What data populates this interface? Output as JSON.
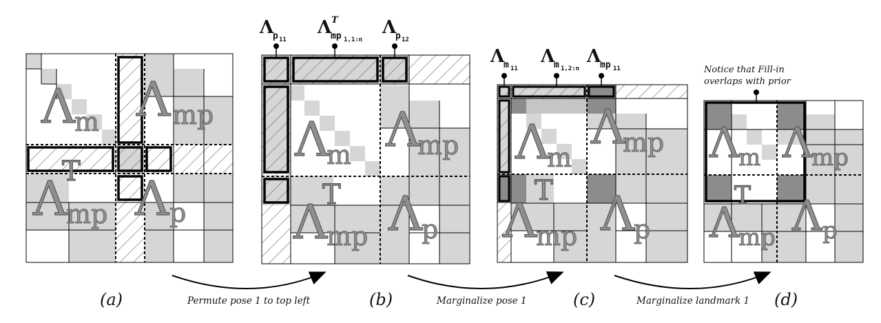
{
  "panels": [
    {
      "label": "(a)"
    },
    {
      "label": "(b)"
    },
    {
      "label": "(c)"
    },
    {
      "label": "(d)"
    }
  ],
  "steps": [
    {
      "text": "Permute pose 1 to top left"
    },
    {
      "text": "Marginalize pose 1"
    },
    {
      "text": "Marginalize landmark 1"
    }
  ],
  "note": {
    "line1": "Notice that Fill-in",
    "line2": "overlaps with prior"
  },
  "symbols": {
    "lambda": "Λ",
    "T": "T",
    "m": "m",
    "mp": "mp",
    "p": "p"
  },
  "labels_b": {
    "p11": {
      "sym": "Λ",
      "sub": "p",
      "subsub": "11"
    },
    "mp": {
      "sym": "Λ",
      "sup": "T",
      "sub": "mp",
      "subsub": "1,1:n"
    },
    "p12": {
      "sym": "Λ",
      "sub": "p",
      "subsub": "12"
    }
  },
  "labels_c": {
    "m11": {
      "sym": "Λ",
      "sub": "m",
      "subsub": "11"
    },
    "m12n": {
      "sym": "Λ",
      "sub": "m",
      "subsub": "1,2:n"
    },
    "mp11": {
      "sym": "Λ",
      "sub": "mp",
      "subsub": "11"
    }
  },
  "colors": {
    "light": "#d6d6d6",
    "dark": "#8c8c8c",
    "line": "#000000"
  }
}
